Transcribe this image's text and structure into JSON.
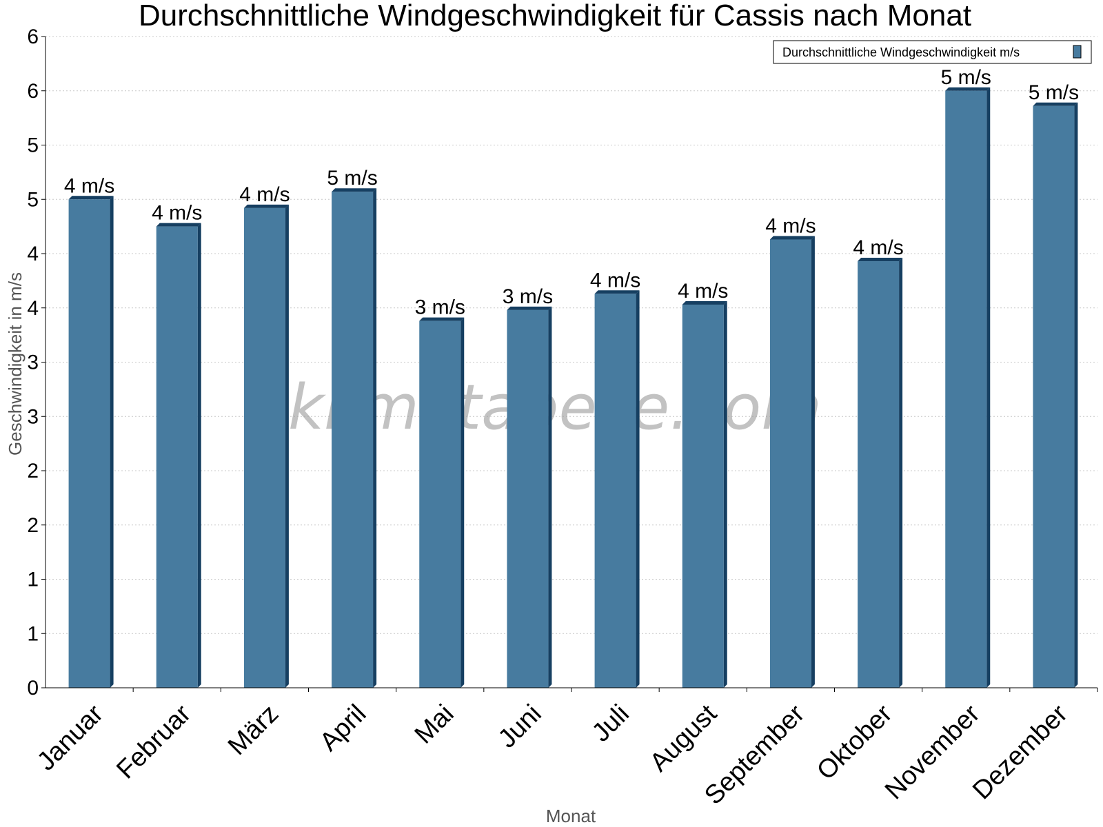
{
  "colors": {
    "bar": "#477b9f",
    "bar_side": "#163f61",
    "grid": "#c8c8c8"
  },
  "watermark": "klimatabelle.com",
  "chart_data": {
    "type": "bar",
    "title": "Durchschnittliche Windgeschwindigkeit für Cassis nach Monat",
    "xlabel": "Monat",
    "ylabel": "Geschwindigkeit in m/s",
    "categories": [
      "Januar",
      "Februar",
      "März",
      "April",
      "Mai",
      "Juni",
      "Juli",
      "August",
      "September",
      "Oktober",
      "November",
      "Dezember"
    ],
    "series": [
      {
        "name": "Durchschnittliche Windgeschwindigkeit m/s",
        "values": [
          4.5,
          4.25,
          4.42,
          4.57,
          3.38,
          3.48,
          3.63,
          3.53,
          4.13,
          3.93,
          5.5,
          5.36
        ],
        "data_labels": [
          "4 m/s",
          "4 m/s",
          "4 m/s",
          "5 m/s",
          "3 m/s",
          "3 m/s",
          "4 m/s",
          "4 m/s",
          "4 m/s",
          "4 m/s",
          "5 m/s",
          "5 m/s"
        ]
      }
    ],
    "ylim": [
      0,
      6
    ],
    "y_ticks": [
      0,
      0.5,
      1,
      1.5,
      2,
      2.5,
      3,
      3.5,
      4,
      4.5,
      5,
      5.5,
      6
    ],
    "y_tick_labels": [
      "0",
      "1",
      "1",
      "2",
      "2",
      "3",
      "3",
      "4",
      "4",
      "5",
      "5",
      "6",
      "6"
    ],
    "grid": true,
    "legend_position": "top-right"
  }
}
